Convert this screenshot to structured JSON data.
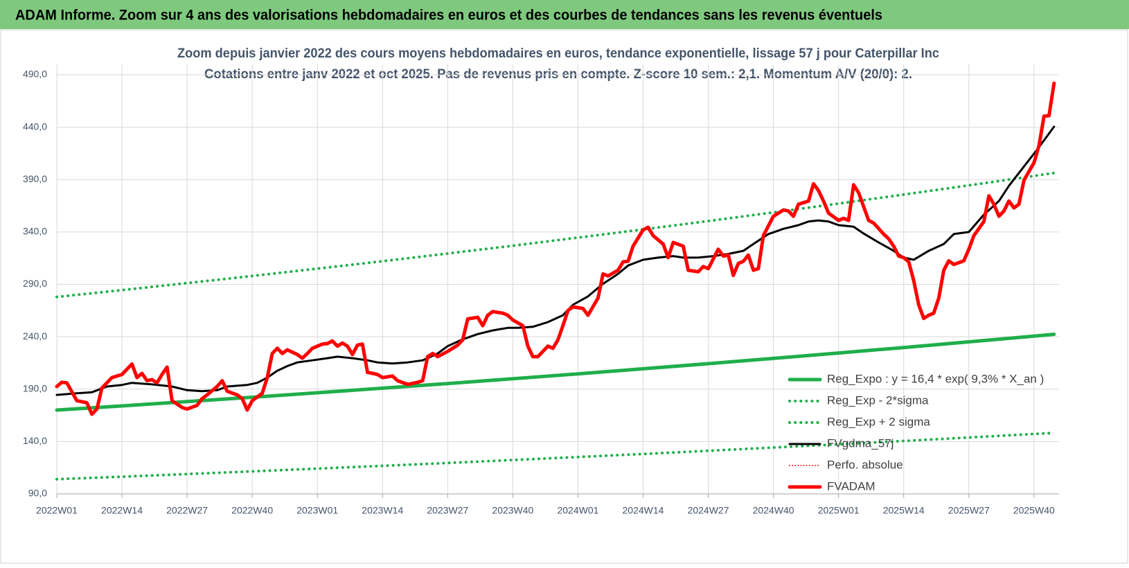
{
  "header": "ADAM Informe. Zoom sur 4 ans des valorisations hebdomadaires en euros et des courbes de tendances sans les revenus éventuels",
  "chart_data": {
    "type": "line",
    "title": "Zoom depuis janvier 2022 des cours moyens hebdomadaires en euros, tendance exponentielle, lissage 57 j pour Caterpillar Inc",
    "subtitle": "Cotations entre janv 2022 et oct 2025. Pas de revenus pris en compte. Z-score 10 sem.: 2,1. Momentum A/V (20/0): 2.",
    "xlim": [
      0,
      200
    ],
    "xticks": [
      {
        "value": 0,
        "label": "2022W01"
      },
      {
        "value": 13,
        "label": "2022W14"
      },
      {
        "value": 26,
        "label": "2022W27"
      },
      {
        "value": 39,
        "label": "2022W40"
      },
      {
        "value": 52,
        "label": "2023W01"
      },
      {
        "value": 65,
        "label": "2023W14"
      },
      {
        "value": 78,
        "label": "2023W27"
      },
      {
        "value": 91,
        "label": "2023W40"
      },
      {
        "value": 104,
        "label": "2024W01"
      },
      {
        "value": 117,
        "label": "2024W14"
      },
      {
        "value": 130,
        "label": "2024W27"
      },
      {
        "value": 143,
        "label": "2024W40"
      },
      {
        "value": 156,
        "label": "2025W01"
      },
      {
        "value": 169,
        "label": "2025W14"
      },
      {
        "value": 182,
        "label": "2025W27"
      },
      {
        "value": 195,
        "label": "2025W40"
      }
    ],
    "ylim": [
      90,
      490
    ],
    "yticks": [
      {
        "value": 90,
        "label": "90,0"
      },
      {
        "value": 140,
        "label": "140,0"
      },
      {
        "value": 190,
        "label": "190,0"
      },
      {
        "value": 240,
        "label": "240,0"
      },
      {
        "value": 290,
        "label": "290,0"
      },
      {
        "value": 340,
        "label": "340,0"
      },
      {
        "value": 390,
        "label": "390,0"
      },
      {
        "value": 440,
        "label": "440,0"
      },
      {
        "value": 490,
        "label": "490,0"
      }
    ],
    "grid": true,
    "legend": "right",
    "series": [
      {
        "name": "Reg_Expo : y = 16,4 * exp( 9,3% * X_an )",
        "color": "#1fae4b",
        "width": 5,
        "dash": "solid",
        "x": [
          0,
          13,
          26,
          39,
          52,
          65,
          78,
          91,
          104,
          117,
          130,
          143,
          156,
          169,
          182,
          195,
          199
        ],
        "values": [
          170,
          174.0,
          178.1,
          182.2,
          186.5,
          190.9,
          195.3,
          199.9,
          204.6,
          209.4,
          214.3,
          219.3,
          224.5,
          229.7,
          235.1,
          240.6,
          242.3
        ]
      },
      {
        "name": "Reg_Exp - 2*sigma",
        "color": "#1fae4b",
        "width": 4,
        "dash": "dotted",
        "x": [
          0,
          13,
          26,
          39,
          52,
          65,
          78,
          91,
          104,
          117,
          130,
          143,
          156,
          169,
          182,
          195,
          199
        ],
        "values": [
          104,
          106.4,
          108.9,
          111.5,
          114.1,
          116.8,
          119.5,
          122.3,
          125.2,
          128.1,
          131.1,
          134.2,
          137.3,
          140.5,
          143.8,
          147.2,
          148.2
        ]
      },
      {
        "name": "Reg_Exp + 2 sigma",
        "color": "#1fae4b",
        "width": 4,
        "dash": "dotted",
        "x": [
          0,
          13,
          26,
          39,
          52,
          65,
          78,
          91,
          104,
          117,
          130,
          143,
          156,
          169,
          182,
          195,
          199
        ],
        "values": [
          278,
          284.5,
          291.2,
          298.0,
          305.0,
          312.1,
          319.4,
          326.9,
          334.6,
          342.4,
          350.4,
          358.7,
          367.1,
          375.7,
          384.5,
          393.5,
          396.3
        ]
      },
      {
        "name": "FVgdma_57j",
        "color": "#000000",
        "width": 3,
        "dash": "solid",
        "x": [
          0,
          4,
          7,
          10,
          13,
          15,
          19,
          23,
          26,
          29,
          32,
          34,
          38,
          40,
          42,
          44,
          46,
          48,
          51,
          54,
          56,
          59,
          62,
          64,
          67,
          70,
          73,
          76,
          78,
          81,
          84,
          87,
          90,
          92,
          95,
          98,
          101,
          103,
          106,
          109,
          112,
          114,
          117,
          120,
          123,
          125,
          128,
          131,
          134,
          137,
          139,
          142,
          145,
          148,
          150,
          152,
          154,
          156,
          159,
          161,
          164,
          167,
          169,
          171,
          174,
          177,
          179,
          182,
          185,
          188,
          190,
          193,
          196,
          199
        ],
        "values": [
          184.5,
          186,
          187,
          192.5,
          194,
          196,
          194.5,
          192.5,
          189,
          188,
          189,
          192.5,
          194,
          196,
          201,
          207.5,
          212,
          215.5,
          217.5,
          219.5,
          221,
          219.5,
          217.5,
          215.5,
          214.5,
          215.5,
          217.5,
          224,
          231,
          237.5,
          242.5,
          246,
          248.5,
          248.5,
          249.5,
          254,
          260.5,
          270.5,
          278.5,
          290.5,
          300,
          308,
          313.5,
          315.5,
          317,
          315.5,
          315.5,
          317,
          319,
          322,
          328.5,
          338,
          343,
          346.5,
          350,
          351,
          350,
          346.5,
          345,
          338.5,
          330,
          322,
          315.5,
          313.5,
          322,
          328.5,
          338,
          340,
          356.5,
          369.5,
          384,
          402.5,
          421,
          440.5
        ]
      },
      {
        "name": "Perfo. absolue",
        "color": "#e8262a",
        "width": 2,
        "dash": "dotted",
        "x": [],
        "values": []
      },
      {
        "name": "FVADAM",
        "color": "#ff0000",
        "width": 5,
        "dash": "solid",
        "x": [
          0,
          1,
          2,
          4,
          6,
          7,
          8,
          9,
          11,
          13,
          15,
          16,
          17,
          18,
          19,
          20,
          21,
          22,
          23,
          25,
          26,
          28,
          29,
          30,
          32,
          33,
          34,
          36,
          37,
          38,
          39,
          41,
          42,
          43,
          44,
          45,
          46,
          48,
          49,
          50,
          51,
          53,
          54,
          55,
          56,
          57,
          58,
          59,
          60,
          61,
          62,
          64,
          65,
          67,
          68,
          70,
          72,
          73,
          74,
          75,
          76,
          78,
          80,
          81,
          82,
          84,
          85,
          86,
          87,
          89,
          90,
          91,
          93,
          94,
          95,
          96,
          98,
          99,
          100,
          101,
          102,
          103,
          105,
          106,
          108,
          109,
          110,
          112,
          113,
          114,
          115,
          117,
          118,
          119,
          121,
          122,
          123,
          125,
          126,
          128,
          129,
          130,
          132,
          133,
          134,
          135,
          136,
          137,
          138,
          139,
          140,
          141,
          143,
          145,
          146,
          147,
          148,
          150,
          151,
          152,
          153,
          154,
          156,
          157,
          158,
          159,
          160,
          162,
          163,
          165,
          166,
          167,
          168,
          169,
          170,
          171,
          172,
          173,
          174,
          175,
          176,
          177,
          178,
          179,
          181,
          182,
          183,
          185,
          186,
          187,
          188,
          189,
          190,
          191,
          192,
          193,
          195,
          196,
          197,
          198,
          199
        ],
        "values": [
          192.5,
          196.5,
          196,
          179,
          177,
          166,
          171,
          191,
          201,
          204,
          214,
          201,
          205,
          198,
          199,
          196,
          204,
          211,
          179,
          172.5,
          171,
          174.5,
          181,
          184.5,
          192.5,
          198,
          188,
          184.5,
          181,
          170,
          179,
          186,
          201,
          224,
          229,
          224,
          227.5,
          223,
          219.5,
          224,
          229,
          233,
          233.5,
          236,
          231,
          234,
          231,
          223,
          232,
          233,
          206,
          204,
          201,
          202.5,
          198,
          194.5,
          196.5,
          198,
          221,
          224,
          221,
          226,
          232,
          237,
          257,
          258.5,
          250.5,
          260.5,
          264,
          262.5,
          260.5,
          256,
          250.5,
          231,
          221,
          221,
          231,
          229,
          237,
          250.5,
          265,
          268.5,
          267,
          260.5,
          277,
          300,
          298,
          303.5,
          311.5,
          312,
          326.5,
          342,
          344.5,
          336.5,
          328.5,
          315.5,
          330,
          326.5,
          303.5,
          302,
          307,
          305,
          323.5,
          317,
          318,
          298.5,
          310,
          312,
          318,
          303.5,
          305,
          336.5,
          355,
          361,
          360,
          355,
          366.5,
          369.5,
          386,
          379.5,
          369.5,
          358,
          351,
          353,
          351,
          385,
          377.5,
          351,
          348.5,
          338,
          333.5,
          326.5,
          317,
          315.5,
          311.5,
          293.5,
          270.5,
          257.5,
          260.5,
          262.5,
          277,
          303.5,
          312.5,
          309,
          312.5,
          323.5,
          336.5,
          350,
          374.5,
          366.5,
          355,
          360,
          369.5,
          363,
          366.5,
          389.5,
          406,
          422.5,
          450.5,
          451,
          482
        ]
      }
    ]
  }
}
